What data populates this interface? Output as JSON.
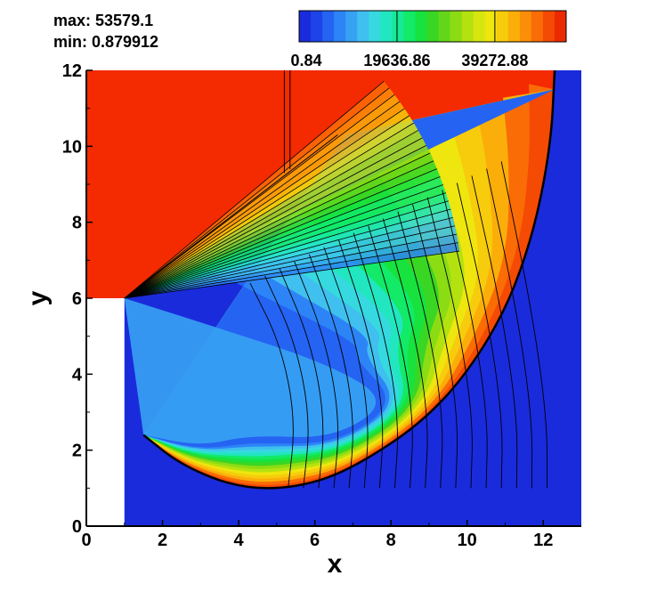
{
  "stats": {
    "max_label": "max: 53579.1",
    "min_label": "min: 0.879912"
  },
  "colorbar": {
    "range": [
      0.879912,
      53579.1
    ],
    "tick_labels": [
      "0.84",
      "19636.86",
      "39272.88"
    ],
    "tick_values": [
      0.84,
      19636.86,
      39272.88
    ],
    "colors": [
      "#1a2bdc",
      "#1e43e8",
      "#2563f2",
      "#2d84f6",
      "#37a2f3",
      "#3fc0ef",
      "#36d9e0",
      "#22e6c0",
      "#16ea97",
      "#12ea68",
      "#18e23e",
      "#3ad624",
      "#64d61a",
      "#8cdc14",
      "#b4e210",
      "#d6e60e",
      "#eee60e",
      "#f7cc0c",
      "#fbae0a",
      "#fb8e08",
      "#fa6c06",
      "#f44a04",
      "#ec2a02"
    ]
  },
  "chart_data": {
    "type": "heatmap",
    "title": "",
    "xlabel": "x",
    "ylabel": "y",
    "xlim": [
      0,
      13
    ],
    "ylim": [
      0,
      12
    ],
    "x_ticks": [
      0,
      2,
      4,
      6,
      8,
      10,
      12
    ],
    "y_ticks": [
      0,
      2,
      4,
      6,
      8,
      10,
      12
    ],
    "x_tick_labels": [
      "0",
      "2",
      "4",
      "6",
      "8",
      "10",
      "12"
    ],
    "y_tick_labels": [
      "0",
      "2",
      "4",
      "6",
      "8",
      "10",
      "12"
    ],
    "value_min": 0.879912,
    "value_max": 53579.1,
    "regions": [
      {
        "name": "pre-shock region",
        "color": "#1a2bdc"
      },
      {
        "name": "post-shock high region",
        "color": "#f42a00"
      },
      {
        "name": "solid wall block",
        "color": "#ffffff"
      }
    ],
    "bow_shock": [
      [
        12.3,
        12
      ],
      [
        12.2,
        10
      ],
      [
        11.7,
        7.5
      ],
      [
        10.8,
        5.2
      ],
      [
        9.2,
        3.0
      ],
      [
        7.0,
        1.5
      ],
      [
        5.5,
        1.0
      ],
      [
        4.0,
        1.0
      ],
      [
        2.5,
        1.6
      ],
      [
        1.5,
        2.4
      ]
    ],
    "slip_line": [
      [
        1.0,
        6.0
      ],
      [
        6.6,
        10.3
      ]
    ],
    "contour_lines": true,
    "grid": false,
    "legend": "top"
  }
}
